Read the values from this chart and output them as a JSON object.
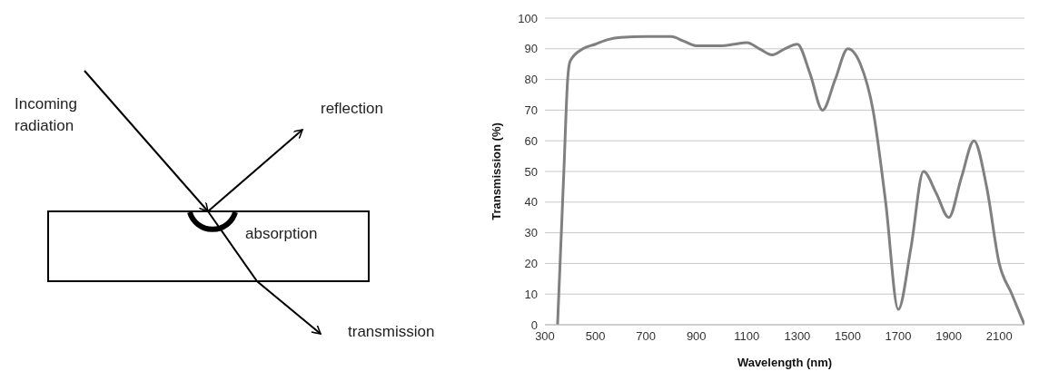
{
  "chart_data": [
    {
      "type": "other",
      "annotations": [
        "Incoming radiation",
        "reflection",
        "absorption",
        "transmission"
      ]
    },
    {
      "type": "line",
      "xlabel": "Wavelength (nm)",
      "ylabel": "Transmission (%)",
      "xlim": [
        300,
        2200
      ],
      "xticks": [
        300,
        500,
        700,
        900,
        1100,
        1300,
        1500,
        1700,
        1900,
        2100
      ],
      "ylim": [
        0,
        100
      ],
      "yticks": [
        0,
        10,
        20,
        30,
        40,
        50,
        60,
        70,
        80,
        90,
        100
      ],
      "grid": "y",
      "marker": "none",
      "line_style": "solid",
      "x": [
        350,
        360,
        375,
        390,
        400,
        450,
        500,
        550,
        600,
        700,
        800,
        850,
        900,
        1000,
        1050,
        1100,
        1150,
        1200,
        1250,
        1300,
        1350,
        1400,
        1450,
        1500,
        1550,
        1600,
        1650,
        1700,
        1750,
        1800,
        1850,
        1900,
        1950,
        2000,
        2050,
        2100,
        2150,
        2200
      ],
      "series": [
        {
          "color": "#808080",
          "values": [
            0,
            20,
            50,
            80,
            86,
            90,
            91.5,
            93,
            93.7,
            94,
            94,
            92.5,
            91,
            91,
            91.5,
            92,
            90,
            88,
            90,
            91.5,
            82,
            70,
            80,
            90,
            85,
            70,
            40,
            5,
            25,
            50,
            43,
            35,
            48,
            60,
            45,
            20,
            10,
            0
          ]
        }
      ]
    }
  ]
}
